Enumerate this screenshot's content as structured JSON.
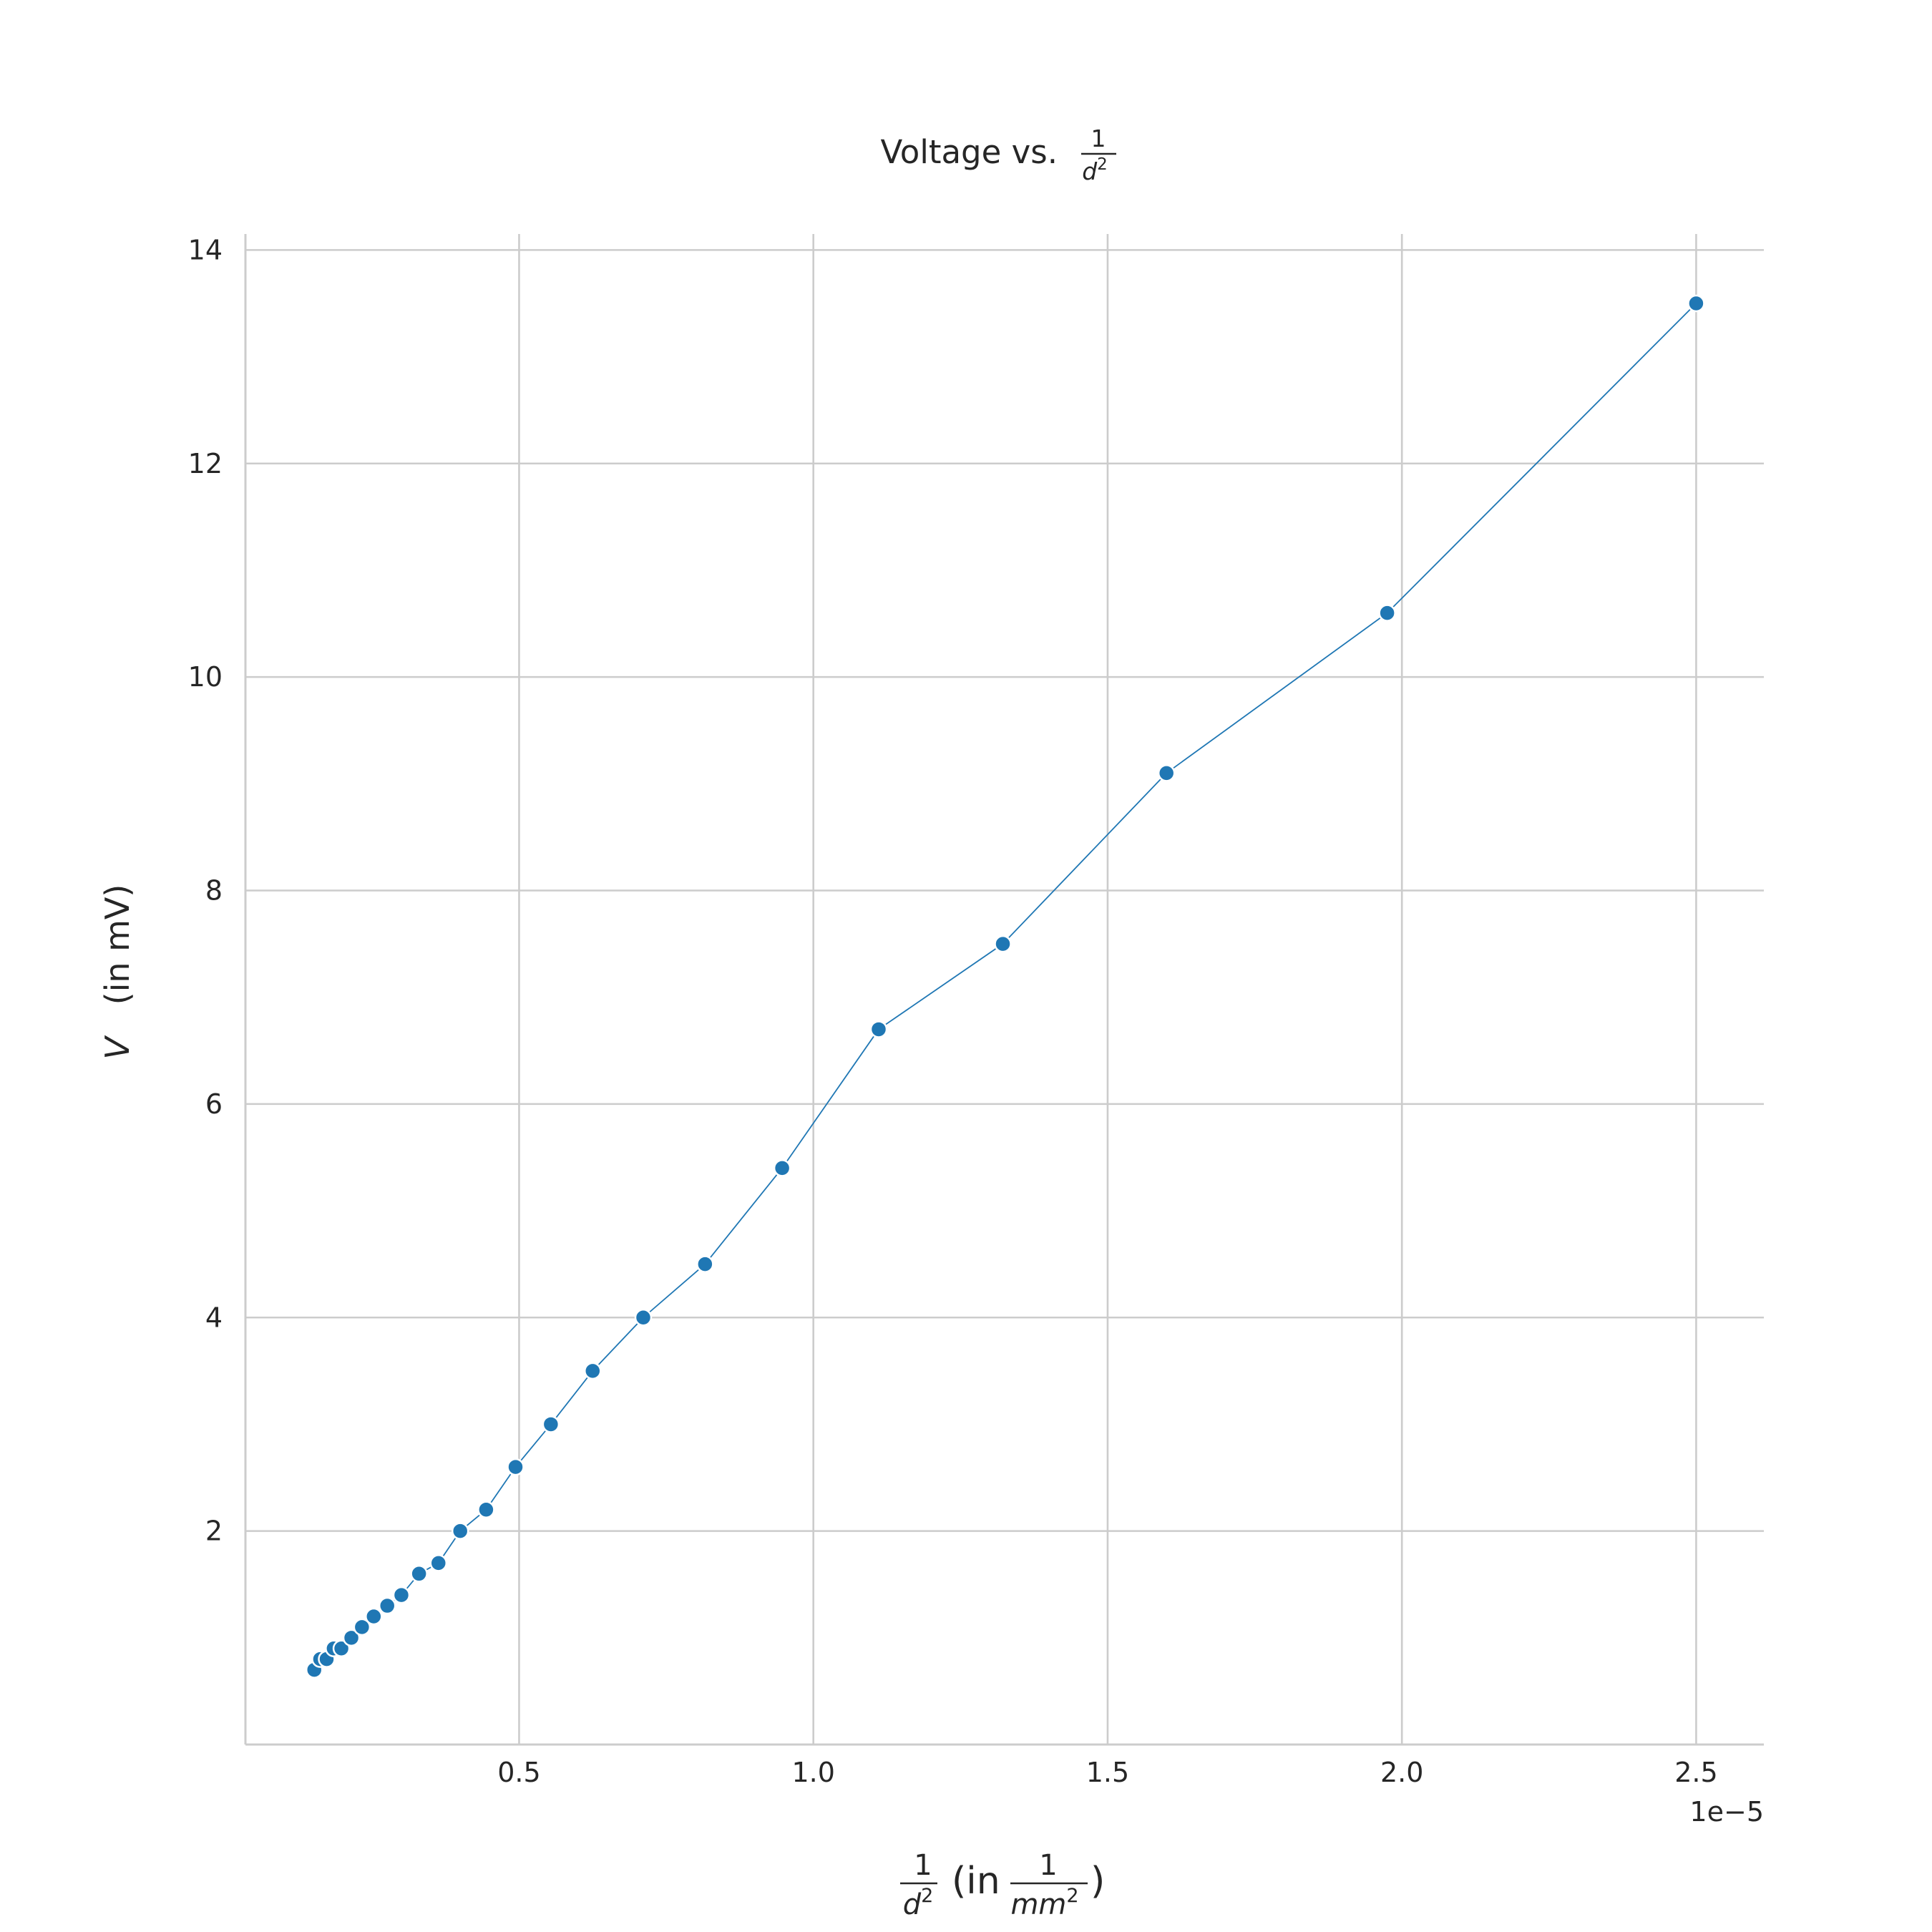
{
  "chart_data": {
    "type": "line",
    "title": {
      "prefix": "Voltage vs. ",
      "frac_num": "1",
      "frac_den_var": "d",
      "frac_den_exp": "2"
    },
    "xlabel": {
      "frac_num": "1",
      "frac_den_var": "d",
      "frac_den_exp": "2",
      "middle": "(in ",
      "unit_num": "1",
      "unit_den_var": "mm",
      "unit_den_exp": "2",
      "suffix": ")"
    },
    "ylabel": {
      "var": "V",
      "unit": "(in mV)"
    },
    "x_offset_label": "1e−5",
    "x_scale": 1e-05,
    "xlim": [
      0.035,
      2.615
    ],
    "ylim": [
      0.0,
      14.15
    ],
    "xticks": [
      0.5,
      1.0,
      1.5,
      2.0,
      2.5
    ],
    "xtick_labels": [
      "0.5",
      "1.0",
      "1.5",
      "2.0",
      "2.5"
    ],
    "yticks": [
      2,
      4,
      6,
      8,
      10,
      12,
      14
    ],
    "ytick_labels": [
      "2",
      "4",
      "6",
      "8",
      "10",
      "12",
      "14"
    ],
    "grid": true,
    "series": [
      {
        "color": "#1f77b4",
        "marker": "circle",
        "x": [
          0.152,
          0.162,
          0.173,
          0.185,
          0.198,
          0.215,
          0.233,
          0.253,
          0.276,
          0.3,
          0.33,
          0.363,
          0.4,
          0.444,
          0.494,
          0.554,
          0.625,
          0.711,
          0.816,
          0.947,
          1.111,
          1.322,
          1.6,
          1.975,
          2.5
        ],
        "y": [
          0.7,
          0.8,
          0.8,
          0.9,
          0.9,
          1.0,
          1.1,
          1.2,
          1.3,
          1.4,
          1.6,
          1.7,
          2.0,
          2.2,
          2.6,
          3.0,
          3.5,
          4.0,
          4.5,
          5.4,
          6.7,
          7.5,
          9.1,
          10.6,
          13.5
        ]
      }
    ]
  }
}
